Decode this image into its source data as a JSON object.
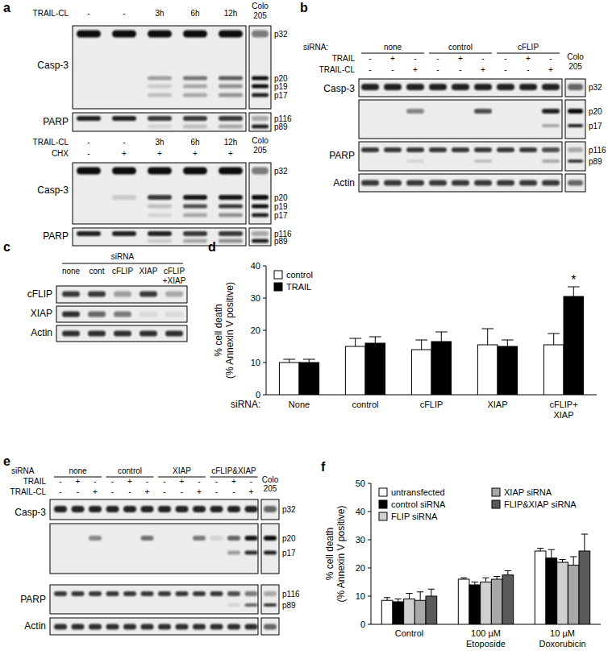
{
  "chart_data": [
    {
      "type": "bar",
      "panel": "d",
      "x_label": "siRNA:",
      "y_label": "% cell death\n(% Annexin V positive)",
      "categories": [
        "None",
        "control",
        "cFLIP",
        "XIAP",
        "cFLIP+\nXIAP"
      ],
      "series": [
        {
          "name": "control",
          "color": "#ffffff",
          "values": [
            10,
            15,
            14,
            15.5,
            15.5
          ],
          "errors": [
            1,
            2.5,
            3,
            5,
            3.5
          ]
        },
        {
          "name": "TRAIL",
          "color": "#000000",
          "values": [
            10,
            16,
            16.5,
            15,
            30.5
          ],
          "errors": [
            1,
            2,
            3,
            2,
            3
          ],
          "significance": [
            null,
            null,
            null,
            null,
            "*"
          ]
        }
      ],
      "ylim": [
        0,
        40
      ],
      "yticks": [
        0,
        10,
        20,
        30,
        40
      ],
      "grid": false,
      "legend": "top-left"
    },
    {
      "type": "bar",
      "panel": "f",
      "y_label": "% cell death\n(% Annexin V positive)",
      "categories": [
        "Control",
        "100 µM\nEtoposide",
        "10 µM\nDoxorubicin"
      ],
      "series": [
        {
          "name": "untransfected",
          "color": "#ffffff",
          "values": [
            8.5,
            16,
            26
          ],
          "errors": [
            1,
            0.5,
            1
          ]
        },
        {
          "name": "control siRNA",
          "color": "#000000",
          "values": [
            8,
            14,
            23.5
          ],
          "errors": [
            1,
            1,
            3
          ]
        },
        {
          "name": "FLIP siRNA",
          "color": "#d0d0d0",
          "values": [
            9,
            15,
            22
          ],
          "errors": [
            2,
            1.5,
            1
          ]
        },
        {
          "name": "XIAP siRNA",
          "color": "#a8a8a8",
          "values": [
            8.5,
            16,
            21
          ],
          "errors": [
            3,
            1,
            3
          ]
        },
        {
          "name": "FLIP&XIAP siRNA",
          "color": "#5a5a5a",
          "values": [
            10,
            17.5,
            26
          ],
          "errors": [
            2.5,
            1.5,
            6
          ]
        }
      ],
      "ylim": [
        0,
        50
      ],
      "yticks": [
        0,
        10,
        20,
        30,
        40,
        50
      ],
      "grid": false,
      "legend": "top"
    }
  ],
  "blots": [
    {
      "panel": "a",
      "header": [
        {
          "label": "TRAIL-CL",
          "lanes": [
            "-",
            "-",
            "3h",
            "6h",
            "12h"
          ]
        }
      ],
      "reference": "Colo 205",
      "proteins": [
        {
          "name": "Casp-3",
          "bands": [
            "p32",
            "p20",
            "p19",
            "p17"
          ]
        },
        {
          "name": "PARP",
          "bands": [
            "p116",
            "p89"
          ]
        }
      ]
    },
    {
      "header": [
        {
          "label": "TRAIL-CL",
          "lanes": [
            "-",
            "-",
            "3h",
            "6h",
            "12h"
          ]
        },
        {
          "label": "CHX",
          "lanes": [
            "-",
            "+",
            "+",
            "+",
            "+"
          ]
        }
      ],
      "reference": "Colo 205",
      "proteins": [
        {
          "name": "Casp-3",
          "bands": [
            "p32",
            "p20",
            "p19",
            "p17"
          ]
        },
        {
          "name": "PARP",
          "bands": [
            "p116",
            "p89"
          ]
        }
      ]
    },
    {
      "panel": "b",
      "groups_label": "siRNA:",
      "groups": [
        "none",
        "control",
        "cFLIP"
      ],
      "header": [
        {
          "label": "TRAIL",
          "lanes": [
            "-",
            "+",
            "-",
            "-",
            "+",
            "-",
            "-",
            "+",
            "-"
          ]
        },
        {
          "label": "TRAIL-CL",
          "lanes": [
            "-",
            "-",
            "+",
            "-",
            "-",
            "+",
            "-",
            "-",
            "+"
          ]
        }
      ],
      "reference": "Colo 205",
      "proteins": [
        {
          "name": "Casp-3",
          "bands": [
            "p32",
            "p20",
            "p17"
          ]
        },
        {
          "name": "PARP",
          "bands": [
            "p116",
            "p89"
          ]
        },
        {
          "name": "Actin",
          "bands": []
        }
      ]
    },
    {
      "panel": "c",
      "groups_label": "siRNA",
      "lanes": [
        "none",
        "cont",
        "cFLIP",
        "XIAP",
        "cFLIP\n+XIAP"
      ],
      "proteins": [
        {
          "name": "cFLIP",
          "bands": []
        },
        {
          "name": "XIAP",
          "bands": []
        },
        {
          "name": "Actin",
          "bands": []
        }
      ]
    },
    {
      "panel": "e",
      "groups_label": "siRNA",
      "groups": [
        "none",
        "control",
        "XIAP",
        "cFLIP&XIAP"
      ],
      "header": [
        {
          "label": "TRAIL",
          "lanes": [
            "-",
            "+",
            "-",
            "-",
            "+",
            "-",
            "-",
            "+",
            "-",
            "-",
            "+",
            "-"
          ]
        },
        {
          "label": "TRAIL-CL",
          "lanes": [
            "-",
            "-",
            "+",
            "-",
            "-",
            "+",
            "-",
            "-",
            "+",
            "-",
            "-",
            "+"
          ]
        }
      ],
      "reference": "Colo 205",
      "proteins": [
        {
          "name": "Casp-3",
          "bands": [
            "p32",
            "p20",
            "p17"
          ]
        },
        {
          "name": "PARP",
          "bands": [
            "p116",
            "p89"
          ]
        },
        {
          "name": "Actin",
          "bands": []
        }
      ]
    }
  ]
}
